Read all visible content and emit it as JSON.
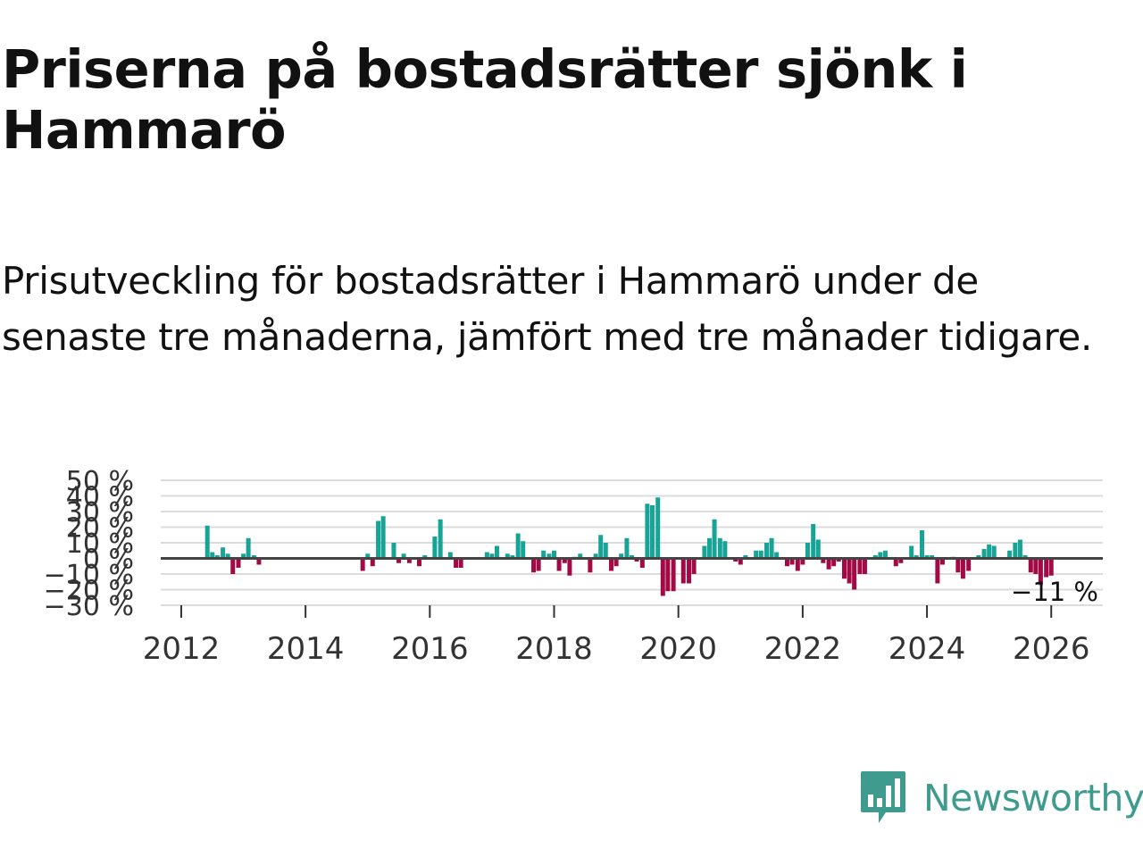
{
  "title": "Priserna på bostadsrätter sjönk i Hammarö",
  "subtitle": "Prisutveckling för bostadsrätter i Hammarö under de senaste tre månaderna, jämfört med tre månader tidigare.",
  "logo": {
    "text": "Newsworthy",
    "icon": "newsworthy-chart-icon"
  },
  "colors": {
    "positive": "#17a497",
    "negative": "#a30a45",
    "grid": "#dcdcdc",
    "zero": "#444444",
    "logo": "#3e9b8e"
  },
  "chart_data": {
    "type": "bar",
    "title": "Priserna på bostadsrätter sjönk i Hammarö",
    "xlabel": "",
    "ylabel": "",
    "ylim": [
      -30,
      50
    ],
    "y_ticks": [
      "50 %",
      "40 %",
      "30 %",
      "20 %",
      "10 %",
      "0 %",
      "−10 %",
      "−20 %",
      "−30 %"
    ],
    "y_tick_values": [
      50,
      40,
      30,
      20,
      10,
      0,
      -10,
      -20,
      -30
    ],
    "x_ticks": [
      "2012",
      "2014",
      "2016",
      "2018",
      "2020",
      "2022",
      "2024",
      "2026"
    ],
    "x_tick_values": [
      2012,
      2014,
      2016,
      2018,
      2020,
      2022,
      2024,
      2026
    ],
    "grid": true,
    "last_value_label": "−11 %",
    "series": [
      {
        "name": "Prisutveckling",
        "points": [
          {
            "x": 2012.42,
            "y": 21
          },
          {
            "x": 2012.5,
            "y": 4
          },
          {
            "x": 2012.58,
            "y": 2
          },
          {
            "x": 2012.67,
            "y": 7
          },
          {
            "x": 2012.75,
            "y": 3
          },
          {
            "x": 2012.83,
            "y": -10
          },
          {
            "x": 2012.92,
            "y": -6
          },
          {
            "x": 2013.0,
            "y": 3
          },
          {
            "x": 2013.08,
            "y": 13
          },
          {
            "x": 2013.17,
            "y": 2
          },
          {
            "x": 2013.25,
            "y": -4
          },
          {
            "x": 2014.92,
            "y": -8
          },
          {
            "x": 2015.0,
            "y": 3
          },
          {
            "x": 2015.08,
            "y": -5
          },
          {
            "x": 2015.17,
            "y": 24
          },
          {
            "x": 2015.25,
            "y": 27
          },
          {
            "x": 2015.42,
            "y": 10
          },
          {
            "x": 2015.5,
            "y": -3
          },
          {
            "x": 2015.58,
            "y": 3
          },
          {
            "x": 2015.67,
            "y": -3
          },
          {
            "x": 2015.83,
            "y": -5
          },
          {
            "x": 2015.92,
            "y": 2
          },
          {
            "x": 2016.08,
            "y": 14
          },
          {
            "x": 2016.17,
            "y": 25
          },
          {
            "x": 2016.33,
            "y": 4
          },
          {
            "x": 2016.42,
            "y": -6
          },
          {
            "x": 2016.5,
            "y": -6
          },
          {
            "x": 2016.92,
            "y": 4
          },
          {
            "x": 2017.0,
            "y": 3
          },
          {
            "x": 2017.08,
            "y": 8
          },
          {
            "x": 2017.25,
            "y": 3
          },
          {
            "x": 2017.33,
            "y": 2
          },
          {
            "x": 2017.42,
            "y": 16
          },
          {
            "x": 2017.5,
            "y": 11
          },
          {
            "x": 2017.67,
            "y": -9
          },
          {
            "x": 2017.75,
            "y": -8
          },
          {
            "x": 2017.83,
            "y": 5
          },
          {
            "x": 2017.92,
            "y": 3
          },
          {
            "x": 2018.0,
            "y": 5
          },
          {
            "x": 2018.08,
            "y": -8
          },
          {
            "x": 2018.17,
            "y": -3
          },
          {
            "x": 2018.25,
            "y": -11
          },
          {
            "x": 2018.33,
            "y": 1
          },
          {
            "x": 2018.42,
            "y": 3
          },
          {
            "x": 2018.58,
            "y": -9
          },
          {
            "x": 2018.67,
            "y": 3
          },
          {
            "x": 2018.75,
            "y": 15
          },
          {
            "x": 2018.83,
            "y": 10
          },
          {
            "x": 2018.92,
            "y": -8
          },
          {
            "x": 2019.0,
            "y": -5
          },
          {
            "x": 2019.08,
            "y": 3
          },
          {
            "x": 2019.17,
            "y": 13
          },
          {
            "x": 2019.25,
            "y": 2
          },
          {
            "x": 2019.33,
            "y": -2
          },
          {
            "x": 2019.42,
            "y": -6
          },
          {
            "x": 2019.5,
            "y": 35
          },
          {
            "x": 2019.58,
            "y": 34
          },
          {
            "x": 2019.67,
            "y": 39
          },
          {
            "x": 2019.75,
            "y": -24
          },
          {
            "x": 2019.83,
            "y": -21
          },
          {
            "x": 2019.92,
            "y": -21
          },
          {
            "x": 2020.08,
            "y": -16
          },
          {
            "x": 2020.17,
            "y": -16
          },
          {
            "x": 2020.25,
            "y": -10
          },
          {
            "x": 2020.42,
            "y": 8
          },
          {
            "x": 2020.5,
            "y": 13
          },
          {
            "x": 2020.58,
            "y": 25
          },
          {
            "x": 2020.67,
            "y": 13
          },
          {
            "x": 2020.75,
            "y": 11
          },
          {
            "x": 2020.92,
            "y": -2
          },
          {
            "x": 2021.0,
            "y": -4
          },
          {
            "x": 2021.08,
            "y": 2
          },
          {
            "x": 2021.25,
            "y": 5
          },
          {
            "x": 2021.33,
            "y": 5
          },
          {
            "x": 2021.42,
            "y": 10
          },
          {
            "x": 2021.5,
            "y": 13
          },
          {
            "x": 2021.58,
            "y": 4
          },
          {
            "x": 2021.75,
            "y": -5
          },
          {
            "x": 2021.83,
            "y": -4
          },
          {
            "x": 2021.92,
            "y": -8
          },
          {
            "x": 2022.0,
            "y": -4
          },
          {
            "x": 2022.08,
            "y": 10
          },
          {
            "x": 2022.17,
            "y": 22
          },
          {
            "x": 2022.25,
            "y": 12
          },
          {
            "x": 2022.33,
            "y": -3
          },
          {
            "x": 2022.42,
            "y": -7
          },
          {
            "x": 2022.5,
            "y": -5
          },
          {
            "x": 2022.58,
            "y": -2
          },
          {
            "x": 2022.67,
            "y": -13
          },
          {
            "x": 2022.75,
            "y": -16
          },
          {
            "x": 2022.83,
            "y": -20
          },
          {
            "x": 2022.92,
            "y": -10
          },
          {
            "x": 2023.0,
            "y": -10
          },
          {
            "x": 2023.17,
            "y": 2
          },
          {
            "x": 2023.25,
            "y": 4
          },
          {
            "x": 2023.33,
            "y": 5
          },
          {
            "x": 2023.5,
            "y": -5
          },
          {
            "x": 2023.58,
            "y": -3
          },
          {
            "x": 2023.75,
            "y": 8
          },
          {
            "x": 2023.83,
            "y": 2
          },
          {
            "x": 2023.92,
            "y": 18
          },
          {
            "x": 2024.0,
            "y": 2
          },
          {
            "x": 2024.08,
            "y": 2
          },
          {
            "x": 2024.17,
            "y": -16
          },
          {
            "x": 2024.25,
            "y": -4
          },
          {
            "x": 2024.42,
            "y": 1
          },
          {
            "x": 2024.5,
            "y": -9
          },
          {
            "x": 2024.58,
            "y": -13
          },
          {
            "x": 2024.67,
            "y": -8
          },
          {
            "x": 2024.83,
            "y": 2
          },
          {
            "x": 2024.92,
            "y": 6
          },
          {
            "x": 2025.0,
            "y": 9
          },
          {
            "x": 2025.08,
            "y": 8
          },
          {
            "x": 2025.33,
            "y": 5
          },
          {
            "x": 2025.42,
            "y": 10
          },
          {
            "x": 2025.5,
            "y": 12
          },
          {
            "x": 2025.58,
            "y": 2
          },
          {
            "x": 2025.67,
            "y": -9
          },
          {
            "x": 2025.75,
            "y": -10
          },
          {
            "x": 2025.83,
            "y": -17
          },
          {
            "x": 2025.92,
            "y": -12
          },
          {
            "x": 2026.0,
            "y": -11
          }
        ]
      }
    ]
  }
}
